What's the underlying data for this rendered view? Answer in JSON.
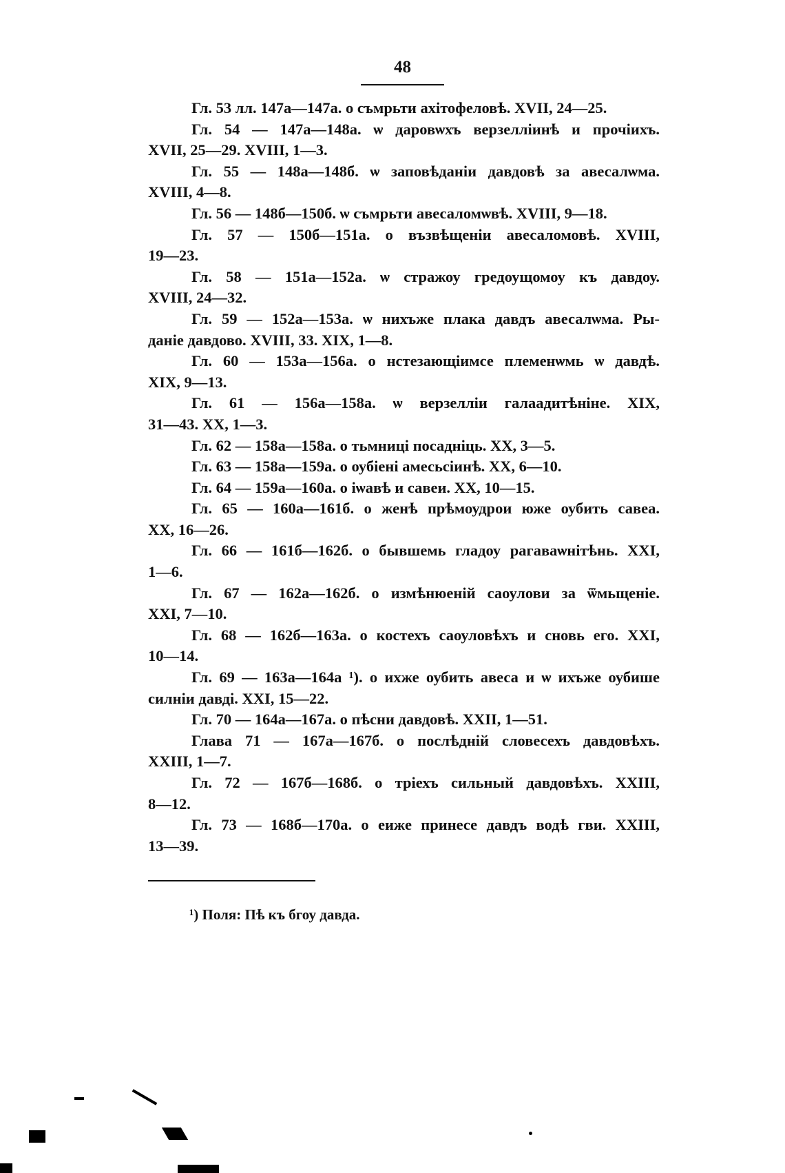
{
  "page_number": "48",
  "entries": [
    {
      "lines": [
        "Гл. 53 лл. 147а—147а. о съмрьти ахітофеловѣ. XVII, 24—25."
      ]
    },
    {
      "lines": [
        "Гл. 54 — 147а—148а. ѡ даровѡхъ верзелліинѣ и прочіихъ.",
        "XVII, 25—29. XVIII, 1—3."
      ]
    },
    {
      "lines": [
        "Гл. 55 — 148а—148б. ѡ заповѣданіи давдовѣ за авесалѡма.",
        "XVIII, 4—8."
      ]
    },
    {
      "lines": [
        "Гл. 56 — 148б—150б. ѡ съмрьти авесаломѡвѣ. XVIII, 9—18."
      ]
    },
    {
      "lines": [
        "Гл. 57 — 150б—151а. о възвѣщеніи авесаломовѣ. XVIII,",
        "19—23."
      ]
    },
    {
      "lines": [
        "Гл. 58 — 151а—152а. ѡ стражоу гредоущомоу къ давдоу.",
        "XVIII, 24—32."
      ]
    },
    {
      "lines": [
        "Гл. 59 — 152а—153а. ѡ нихъже плака давдъ авесалѡма. Ры-",
        "даніе давдово. XVIII, 33. XIX, 1—8."
      ]
    },
    {
      "lines": [
        "Гл. 60 — 153а—156а. о нстезающіимсе племенѡмь ѡ давдѣ.",
        "XIX, 9—13."
      ]
    },
    {
      "lines": [
        "Гл. 61 — 156а—158а. ѡ верзелліи галаадитѣніне. XIX,",
        "31—43. XX, 1—3."
      ]
    },
    {
      "lines": [
        "Гл. 62 — 158а—158а. о тьмниці посадніць. XX, 3—5."
      ]
    },
    {
      "lines": [
        "Гл. 63 — 158а—159а. о оубіені амесьсіинѣ. XX, 6—10."
      ]
    },
    {
      "lines": [
        "Гл. 64 — 159а—160а. о іѡавѣ и савеи. XX, 10—15."
      ]
    },
    {
      "lines": [
        "Гл. 65 — 160а—161б. о женѣ прѣмоудрои юже оубить савеа.",
        "XX, 16—26."
      ]
    },
    {
      "lines": [
        "Гл. 66 — 161б—162б. о бывшемь гладоу рагаваѡнітѣнь. XXI,",
        "1—6."
      ]
    },
    {
      "lines": [
        "Гл. 67 — 162а—162б. о измѣнюеній саоулови за ѿмьщеніе.",
        "XXI, 7—10."
      ]
    },
    {
      "lines": [
        "Гл. 68 — 162б—163а. о костехъ саоуловѣхъ и сновь его. XXI,",
        "10—14."
      ]
    },
    {
      "lines": [
        "Гл. 69 — 163а—164а ¹). о ихже оубить авеса и ѡ ихъже оубише",
        "силніи давді. XXI, 15—22."
      ]
    },
    {
      "lines": [
        "Гл. 70 — 164а—167а. о пѣсни давдовѣ. XXII, 1—51."
      ]
    },
    {
      "lines": [
        "Глава 71 — 167а—167б. о послѣдній словесехъ давдовѣхъ.",
        "XXIII, 1—7."
      ]
    },
    {
      "lines": [
        "Гл. 72 — 167б—168б. о тріехъ сильный давдовѣхъ. XXIII,",
        "8—12."
      ]
    },
    {
      "lines": [
        "Гл. 73 — 168б—170а. о еиже принесе давдъ водѣ гви. XXIII,",
        "13—39."
      ]
    }
  ],
  "footnote": "¹) Поля: Пѣ къ бгоу давда."
}
